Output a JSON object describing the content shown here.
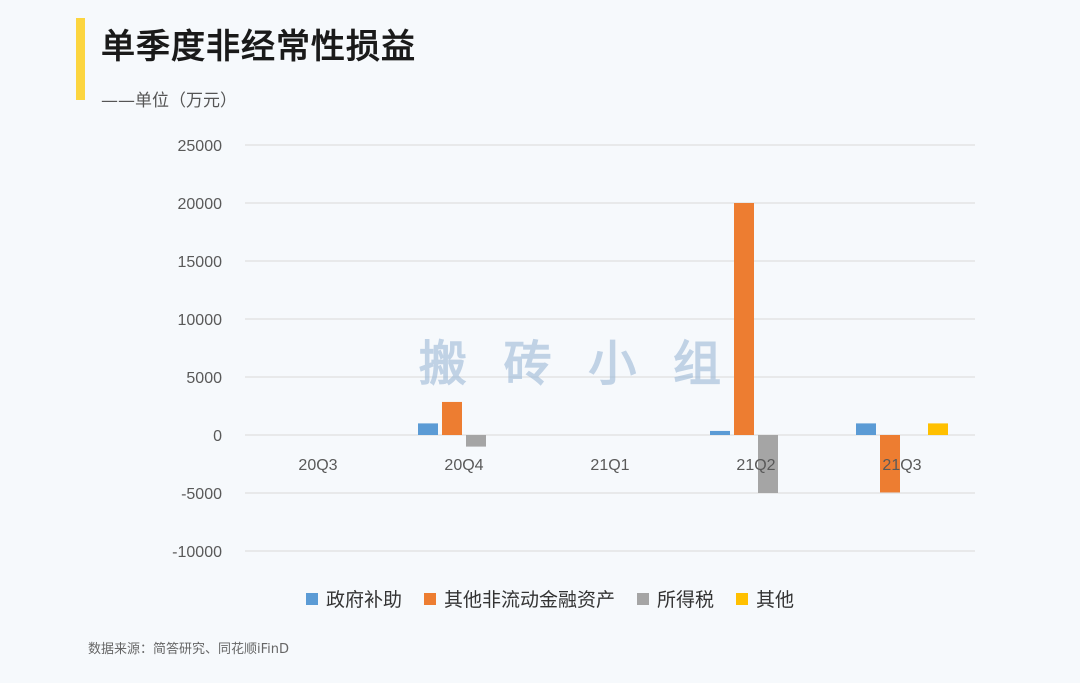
{
  "title": "单季度非经常性损益",
  "subtitle": "——单位（万元）",
  "footer": "数据来源：简答研究、同花顺iFinD",
  "watermark": "搬 砖 小 组",
  "colors": {
    "accent": "#fcd53f",
    "series": [
      "#5b9bd5",
      "#ed7d31",
      "#a5a5a5",
      "#ffc000"
    ],
    "grid": "#d9d9d9",
    "tick_text": "#595959",
    "watermark": "#9cb8d6"
  },
  "chart_data": {
    "type": "bar",
    "categories": [
      "20Q3",
      "20Q4",
      "21Q1",
      "21Q2",
      "21Q3"
    ],
    "series": [
      {
        "name": "政府补助",
        "values": [
          0,
          1000,
          0,
          350,
          1000
        ]
      },
      {
        "name": "其他非流动金融资产",
        "values": [
          0,
          2850,
          0,
          20000,
          -4950
        ]
      },
      {
        "name": "所得税",
        "values": [
          0,
          -1000,
          0,
          -5000,
          0
        ]
      },
      {
        "name": "其他",
        "values": [
          0,
          0,
          0,
          0,
          1000
        ]
      }
    ],
    "ylim": [
      -10000,
      25000
    ],
    "yticks": [
      "25000",
      "20000",
      "15000",
      "10000",
      "5000",
      "0",
      "-5000",
      "-10000"
    ],
    "grid": true,
    "legend_position": "bottom"
  }
}
